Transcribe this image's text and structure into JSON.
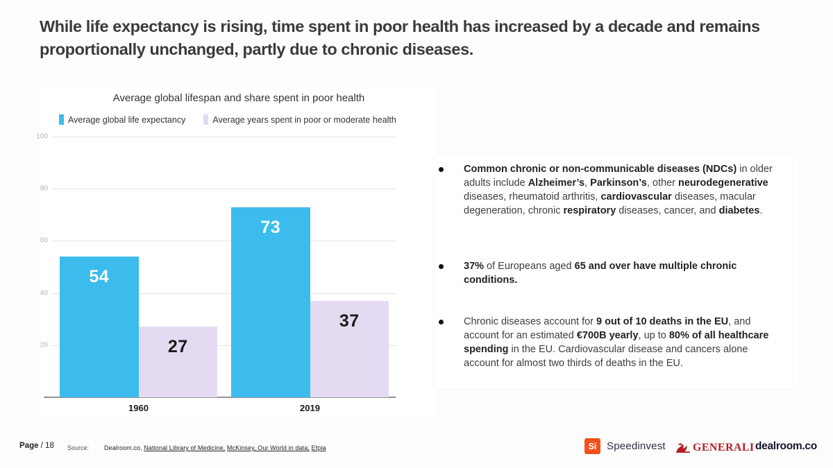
{
  "slide": {
    "title": "While life expectancy is rising, time spent in poor health has increased by a decade and remains proportionally unchanged, partly due to chronic diseases."
  },
  "chart_data": {
    "type": "bar",
    "title": "Average global lifespan and share spent in poor health",
    "categories": [
      "1960",
      "2019"
    ],
    "series": [
      {
        "name": "Average global life expectancy",
        "color": "#3bbcec",
        "label_color": "#ffffff",
        "values": [
          54,
          73
        ]
      },
      {
        "name": "Average years spent in poor or moderate health",
        "color": "#e4dbf2",
        "label_color": "#1a1a1a",
        "values": [
          27,
          37
        ]
      }
    ],
    "ylim": [
      0,
      100
    ],
    "yticks": [
      20,
      40,
      60,
      80,
      100
    ],
    "grid": true,
    "legend_position": "top-left"
  },
  "bullets": [
    {
      "segments": [
        {
          "text": "Common chronic or non-communicable diseases (NDCs)",
          "bold": true
        },
        {
          "text": " in older adults include ",
          "bold": false
        },
        {
          "text": "Alzheimer’s",
          "bold": true
        },
        {
          "text": ", ",
          "bold": false
        },
        {
          "text": "Parkinson’s",
          "bold": true
        },
        {
          "text": ", other ",
          "bold": false
        },
        {
          "text": "neurodegenerative",
          "bold": true
        },
        {
          "text": " diseases, rheumatoid arthritis, ",
          "bold": false
        },
        {
          "text": "cardiovascular",
          "bold": true
        },
        {
          "text": " diseases, macular degeneration, chronic ",
          "bold": false
        },
        {
          "text": "respiratory",
          "bold": true
        },
        {
          "text": " diseases, cancer, and ",
          "bold": false
        },
        {
          "text": "diabetes",
          "bold": true
        },
        {
          "text": ".",
          "bold": false
        }
      ]
    },
    {
      "segments": [
        {
          "text": "37%",
          "bold": true
        },
        {
          "text": " of Europeans aged ",
          "bold": false
        },
        {
          "text": "65 and over have multiple chronic conditions.",
          "bold": true
        }
      ]
    },
    {
      "segments": [
        {
          "text": "Chronic diseases account for ",
          "bold": false
        },
        {
          "text": "9 out of 10 deaths in the EU",
          "bold": true
        },
        {
          "text": ", and account for an estimated ",
          "bold": false
        },
        {
          "text": "€700B yearly",
          "bold": true
        },
        {
          "text": ", up to ",
          "bold": false
        },
        {
          "text": "80% of all healthcare spending",
          "bold": true
        },
        {
          "text": " in the EU. Cardiovascular disease and cancers alone account for almost two thirds of deaths in the EU.",
          "bold": false
        }
      ]
    }
  ],
  "footer": {
    "page_label": "Page",
    "page_number": "/ 18",
    "source_label": "Source:",
    "sources": [
      {
        "text": "Dealroom.co, ",
        "underline": false
      },
      {
        "text": "National Library of Medicine,",
        "underline": true
      },
      {
        "text": " ",
        "underline": false
      },
      {
        "text": "McKinsey, Our World in data,",
        "underline": true
      },
      {
        "text": " ",
        "underline": false
      },
      {
        "text": "Efpia",
        "underline": true
      }
    ],
    "logos": {
      "speedinvest": {
        "mark": "Si",
        "text": "Speedinvest",
        "mark_color": "#f1511b"
      },
      "generali": {
        "text": "GENERALI",
        "color": "#b21f24"
      },
      "dealroom": {
        "text": "dealroom.co"
      }
    }
  }
}
